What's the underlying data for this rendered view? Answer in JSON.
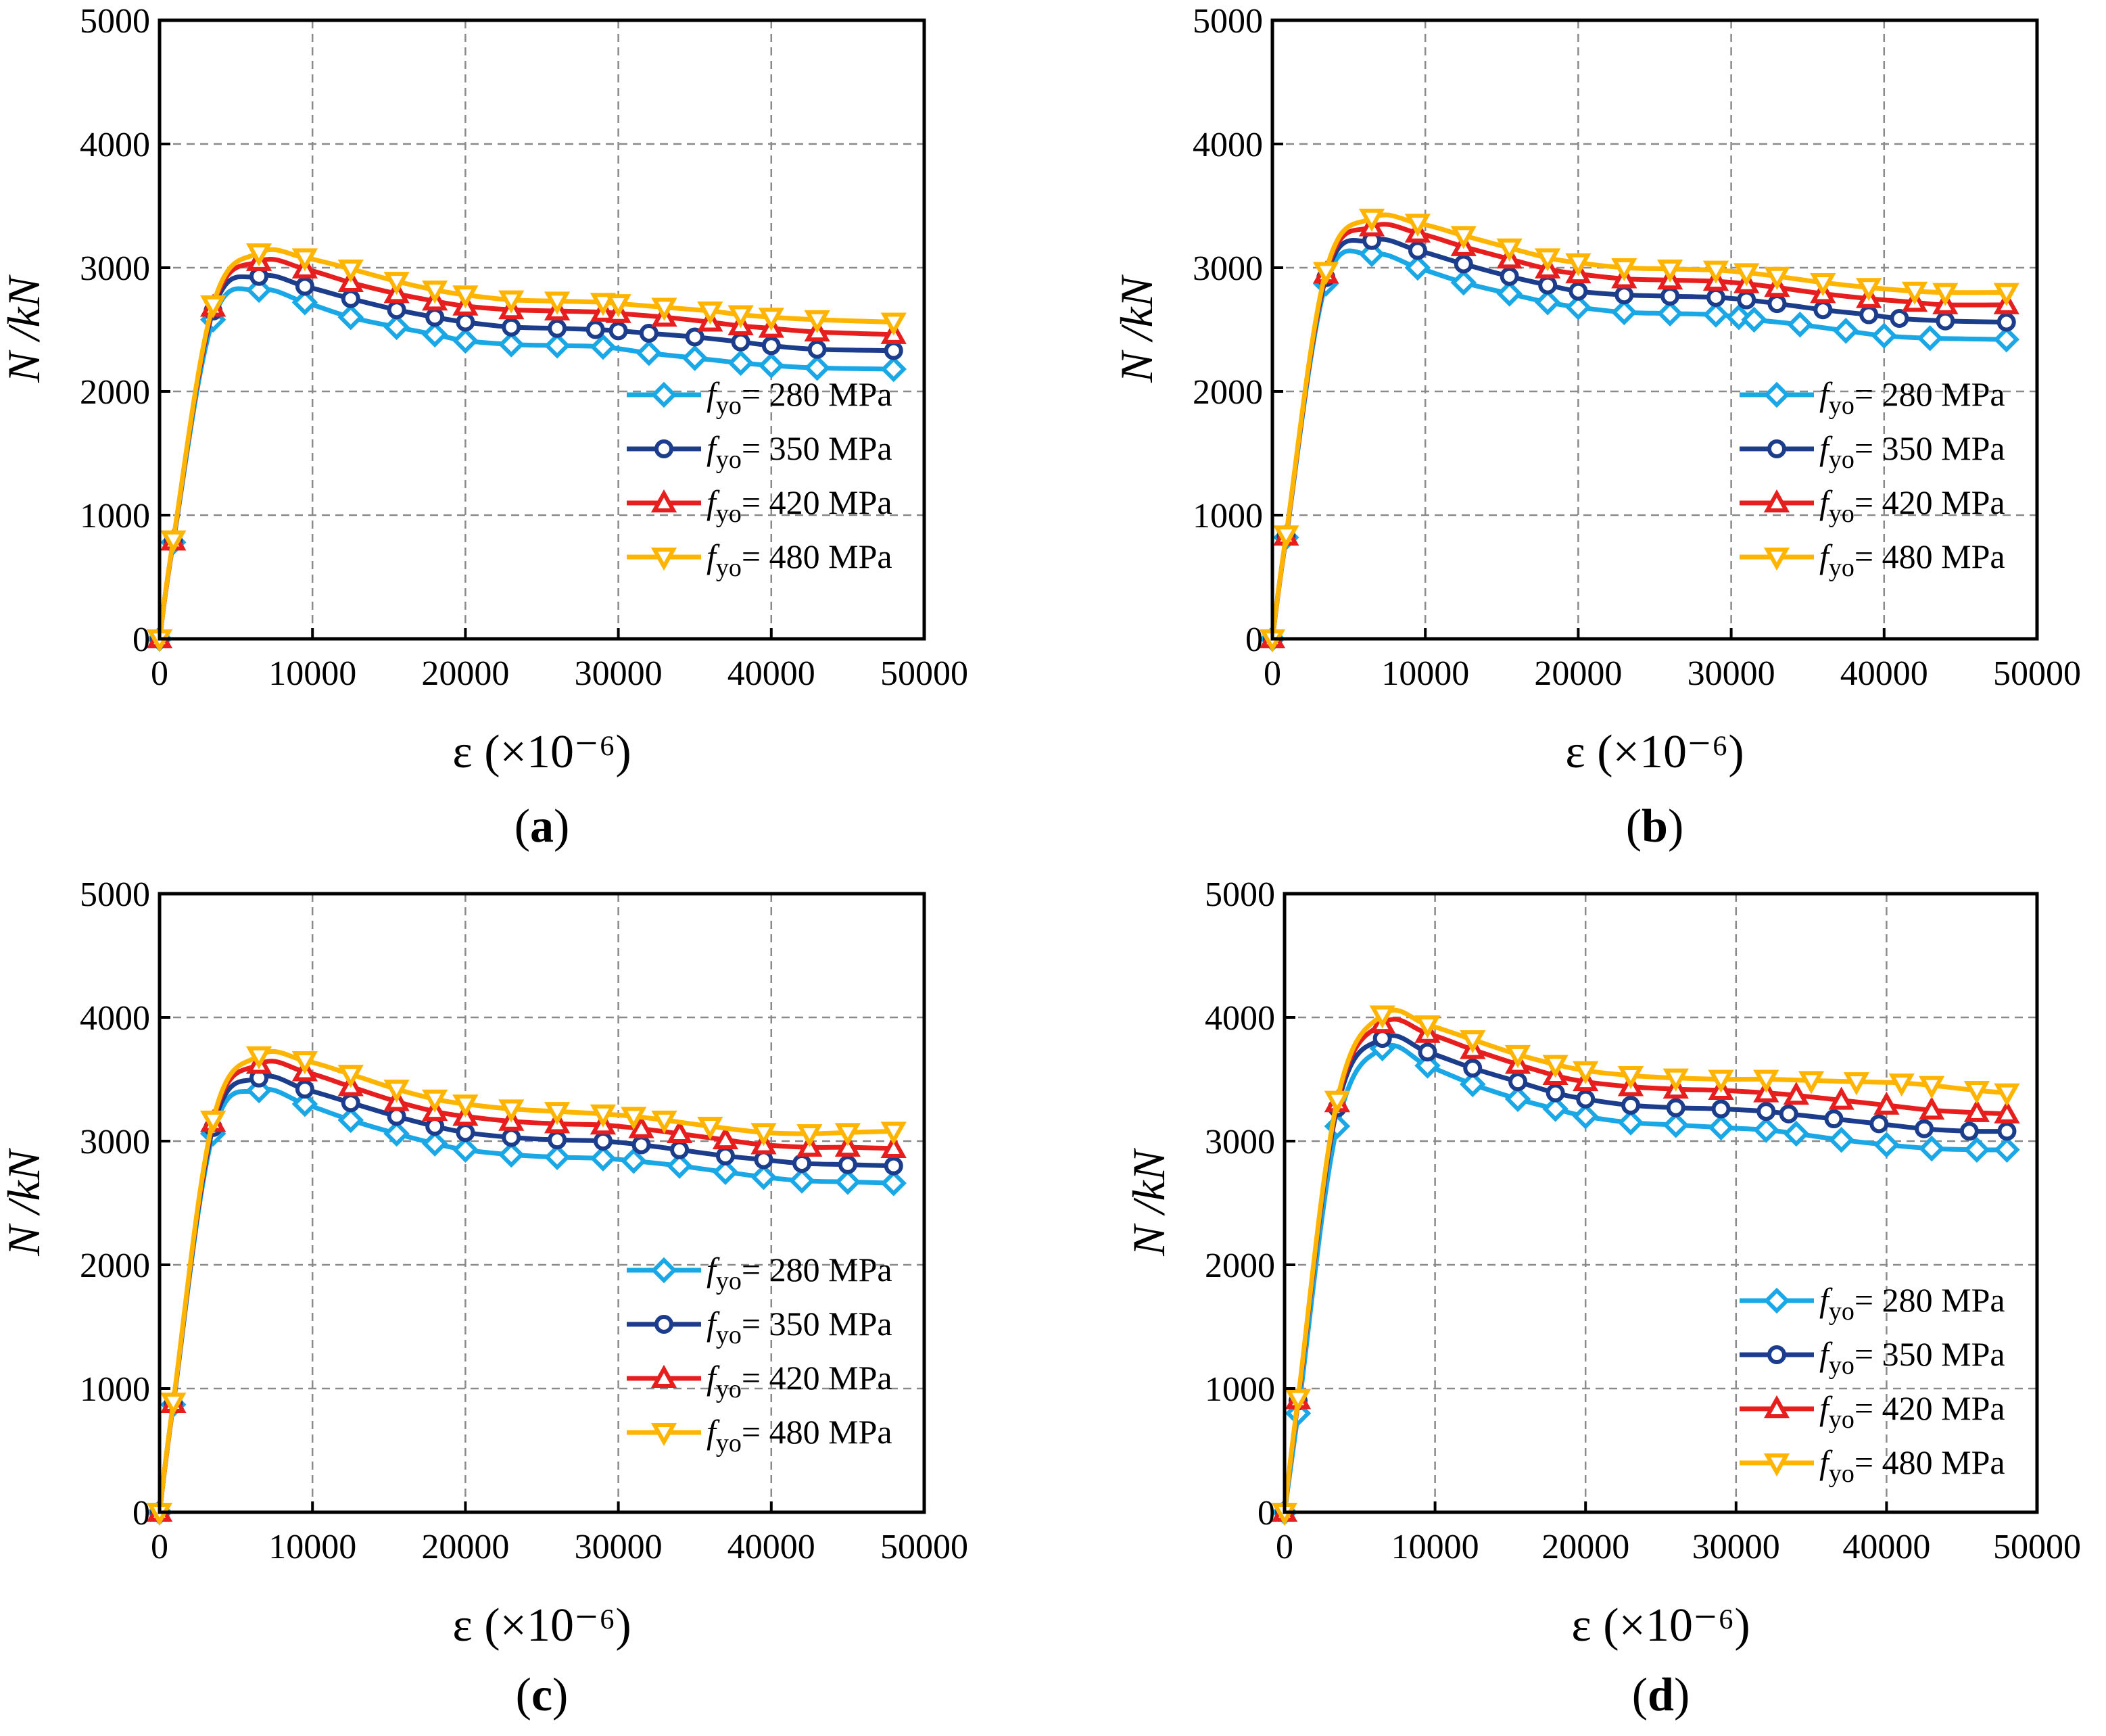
{
  "chart_data": [
    {
      "panel": "a",
      "caption_letter": "a",
      "type": "line",
      "xlabel": "ε (×10⁻⁶)",
      "ylabel": "N /kN",
      "xlim": [
        0,
        50000
      ],
      "ylim": [
        0,
        5000
      ],
      "xticks": [
        "0",
        "10000",
        "20000",
        "30000",
        "40000",
        "50000"
      ],
      "yticks": [
        "0",
        "1000",
        "2000",
        "3000",
        "4000",
        "5000"
      ],
      "grid": true,
      "legend_position": "lower-right",
      "series": [
        {
          "name": "fyo= 280 MPa",
          "sub": "yo",
          "label_rest": "= 280 MPa",
          "color": "#1aa7e6",
          "marker": "diamond",
          "x": [
            0,
            900,
            3500,
            6500,
            9500,
            12500,
            15500,
            18000,
            20000,
            23000,
            26000,
            29000,
            32000,
            35000,
            38000,
            40000,
            43000,
            48000
          ],
          "y": [
            0,
            780,
            2580,
            2820,
            2720,
            2600,
            2520,
            2460,
            2410,
            2380,
            2370,
            2360,
            2310,
            2270,
            2230,
            2210,
            2190,
            2180
          ]
        },
        {
          "name": "fyo= 350 MPa",
          "sub": "yo",
          "label_rest": "= 350 MPa",
          "color": "#1c3d8c",
          "marker": "circle",
          "x": [
            0,
            900,
            3500,
            6500,
            9500,
            12500,
            15500,
            18000,
            20000,
            23000,
            26000,
            28500,
            30000,
            32000,
            35000,
            38000,
            40000,
            43000,
            48000
          ],
          "y": [
            0,
            790,
            2650,
            2930,
            2850,
            2750,
            2660,
            2600,
            2560,
            2520,
            2510,
            2500,
            2490,
            2470,
            2440,
            2400,
            2370,
            2340,
            2330
          ]
        },
        {
          "name": "fyo= 420 MPa",
          "sub": "yo",
          "label_rest": "= 420 MPa",
          "color": "#e61e1e",
          "marker": "triangle-up",
          "x": [
            0,
            900,
            3500,
            6500,
            9500,
            12500,
            15500,
            18000,
            20000,
            23000,
            26000,
            29000,
            30000,
            33000,
            36000,
            38000,
            40000,
            43000,
            48000
          ],
          "y": [
            0,
            790,
            2680,
            3050,
            2990,
            2880,
            2790,
            2730,
            2690,
            2660,
            2650,
            2640,
            2630,
            2600,
            2560,
            2530,
            2510,
            2480,
            2460
          ]
        },
        {
          "name": "fyo= 480 MPa",
          "sub": "yo",
          "label_rest": "= 480 MPa",
          "color": "#ffb400",
          "marker": "triangle-down",
          "x": [
            0,
            900,
            3500,
            6500,
            9500,
            12500,
            15500,
            18000,
            20000,
            23000,
            26000,
            29000,
            30000,
            33000,
            36000,
            38000,
            40000,
            43000,
            48000
          ],
          "y": [
            0,
            800,
            2700,
            3120,
            3080,
            2990,
            2890,
            2820,
            2780,
            2740,
            2730,
            2720,
            2710,
            2680,
            2650,
            2620,
            2600,
            2580,
            2560
          ]
        }
      ]
    },
    {
      "panel": "b",
      "caption_letter": "b",
      "type": "line",
      "xlabel": "ε (×10⁻⁶)",
      "ylabel": "N /kN",
      "xlim": [
        0,
        50000
      ],
      "ylim": [
        0,
        5000
      ],
      "xticks": [
        "0",
        "10000",
        "20000",
        "30000",
        "40000",
        "50000"
      ],
      "yticks": [
        "0",
        "1000",
        "2000",
        "3000",
        "4000",
        "5000"
      ],
      "grid": true,
      "legend_position": "lower-right",
      "series": [
        {
          "name": "fyo= 280 MPa",
          "sub": "yo",
          "label_rest": "= 280 MPa",
          "color": "#1aa7e6",
          "marker": "diamond",
          "x": [
            0,
            900,
            3500,
            6500,
            9500,
            12500,
            15500,
            18000,
            20000,
            23000,
            26000,
            29000,
            30500,
            31500,
            34500,
            37500,
            40000,
            43000,
            48000
          ],
          "y": [
            0,
            820,
            2870,
            3110,
            3000,
            2880,
            2790,
            2720,
            2680,
            2640,
            2630,
            2620,
            2600,
            2580,
            2540,
            2490,
            2450,
            2430,
            2420
          ]
        },
        {
          "name": "fyo= 350 MPa",
          "sub": "yo",
          "label_rest": "= 350 MPa",
          "color": "#1c3d8c",
          "marker": "circle",
          "x": [
            0,
            900,
            3500,
            6500,
            9500,
            12500,
            15500,
            18000,
            20000,
            23000,
            26000,
            29000,
            31000,
            33000,
            36000,
            39000,
            41000,
            44000,
            48000
          ],
          "y": [
            0,
            830,
            2920,
            3220,
            3140,
            3030,
            2930,
            2860,
            2810,
            2780,
            2770,
            2760,
            2740,
            2710,
            2660,
            2620,
            2590,
            2570,
            2560
          ]
        },
        {
          "name": "fyo= 420 MPa",
          "sub": "yo",
          "label_rest": "= 420 MPa",
          "color": "#e61e1e",
          "marker": "triangle-up",
          "x": [
            0,
            900,
            3500,
            6500,
            9500,
            12500,
            15500,
            18000,
            20000,
            23000,
            26000,
            29000,
            31000,
            33000,
            36000,
            39000,
            42000,
            44000,
            48000
          ],
          "y": [
            0,
            830,
            2950,
            3330,
            3280,
            3170,
            3070,
            2990,
            2950,
            2910,
            2900,
            2890,
            2870,
            2840,
            2790,
            2750,
            2720,
            2700,
            2700
          ]
        },
        {
          "name": "fyo= 480 MPa",
          "sub": "yo",
          "label_rest": "= 480 MPa",
          "color": "#ffb400",
          "marker": "triangle-down",
          "x": [
            0,
            900,
            3500,
            6500,
            9500,
            12500,
            15500,
            18000,
            20000,
            23000,
            26000,
            29000,
            31000,
            33000,
            36000,
            39000,
            42000,
            44000,
            48000
          ],
          "y": [
            0,
            840,
            2970,
            3400,
            3360,
            3260,
            3160,
            3080,
            3040,
            3000,
            2990,
            2980,
            2960,
            2930,
            2880,
            2840,
            2810,
            2800,
            2800
          ]
        }
      ]
    },
    {
      "panel": "c",
      "caption_letter": "c",
      "type": "line",
      "xlabel": "ε (×10⁻⁶)",
      "ylabel": "N /kN",
      "xlim": [
        0,
        50000
      ],
      "ylim": [
        0,
        5000
      ],
      "xticks": [
        "0",
        "10000",
        "20000",
        "30000",
        "40000",
        "50000"
      ],
      "yticks": [
        "0",
        "1000",
        "2000",
        "3000",
        "4000",
        "5000"
      ],
      "grid": true,
      "legend_position": "lower-right",
      "series": [
        {
          "name": "fyo= 280 MPa",
          "sub": "yo",
          "label_rest": "= 280 MPa",
          "color": "#1aa7e6",
          "marker": "diamond",
          "x": [
            0,
            900,
            3500,
            6500,
            9500,
            12500,
            15500,
            18000,
            20000,
            23000,
            26000,
            29000,
            31000,
            34000,
            37000,
            39500,
            42000,
            45000,
            48000
          ],
          "y": [
            0,
            870,
            3060,
            3410,
            3300,
            3170,
            3060,
            2980,
            2930,
            2890,
            2870,
            2860,
            2840,
            2800,
            2750,
            2710,
            2680,
            2670,
            2660
          ]
        },
        {
          "name": "fyo= 350 MPa",
          "sub": "yo",
          "label_rest": "= 350 MPa",
          "color": "#1c3d8c",
          "marker": "circle",
          "x": [
            0,
            900,
            3500,
            6500,
            9500,
            12500,
            15500,
            18000,
            20000,
            23000,
            26000,
            29000,
            31500,
            34000,
            37000,
            39500,
            42000,
            45000,
            48000
          ],
          "y": [
            0,
            880,
            3110,
            3510,
            3420,
            3310,
            3200,
            3120,
            3070,
            3030,
            3010,
            3000,
            2970,
            2930,
            2880,
            2850,
            2820,
            2810,
            2800
          ]
        },
        {
          "name": "fyo= 420 MPa",
          "sub": "yo",
          "label_rest": "= 420 MPa",
          "color": "#e61e1e",
          "marker": "triangle-up",
          "x": [
            0,
            900,
            3500,
            6500,
            9500,
            12500,
            15500,
            18000,
            20000,
            23000,
            26000,
            29000,
            31500,
            34000,
            37000,
            39500,
            42500,
            45000,
            48000
          ],
          "y": [
            0,
            880,
            3150,
            3620,
            3560,
            3440,
            3320,
            3240,
            3200,
            3160,
            3140,
            3130,
            3100,
            3060,
            3010,
            2970,
            2950,
            2950,
            2940
          ]
        },
        {
          "name": "fyo= 480 MPa",
          "sub": "yo",
          "label_rest": "= 480 MPa",
          "color": "#ffb400",
          "marker": "triangle-down",
          "x": [
            0,
            900,
            3500,
            6500,
            9500,
            12500,
            15500,
            18000,
            20000,
            23000,
            26000,
            29000,
            31000,
            33000,
            36000,
            39500,
            42500,
            45000,
            48000
          ],
          "y": [
            0,
            890,
            3170,
            3690,
            3650,
            3540,
            3420,
            3340,
            3300,
            3260,
            3240,
            3220,
            3200,
            3170,
            3120,
            3070,
            3060,
            3070,
            3080
          ]
        }
      ]
    },
    {
      "panel": "d",
      "caption_letter": "d",
      "type": "line",
      "xlabel": "ε (×10⁻⁶)",
      "ylabel": "N /kN",
      "xlim": [
        0,
        50000
      ],
      "ylim": [
        0,
        5000
      ],
      "xticks": [
        "0",
        "10000",
        "20000",
        "30000",
        "40000",
        "50000"
      ],
      "yticks": [
        "0",
        "1000",
        "2000",
        "3000",
        "4000",
        "5000"
      ],
      "grid": true,
      "legend_position": "lower-right",
      "series": [
        {
          "name": "fyo= 280 MPa",
          "sub": "yo",
          "label_rest": "= 280 MPa",
          "color": "#1aa7e6",
          "marker": "diamond",
          "x": [
            0,
            900,
            3500,
            6500,
            9500,
            12500,
            15500,
            18000,
            20000,
            23000,
            26000,
            29000,
            32000,
            34000,
            37000,
            40000,
            43000,
            46000,
            48000
          ],
          "y": [
            0,
            800,
            3120,
            3750,
            3610,
            3460,
            3340,
            3260,
            3200,
            3150,
            3130,
            3110,
            3090,
            3060,
            3010,
            2970,
            2940,
            2930,
            2930
          ]
        },
        {
          "name": "fyo= 350 MPa",
          "sub": "yo",
          "label_rest": "= 350 MPa",
          "color": "#1c3d8c",
          "marker": "circle",
          "x": [
            0,
            900,
            3500,
            6500,
            9500,
            12500,
            15500,
            18000,
            20000,
            23000,
            26000,
            29000,
            32000,
            33500,
            36500,
            39500,
            42500,
            45500,
            48000
          ],
          "y": [
            0,
            900,
            3270,
            3830,
            3720,
            3590,
            3480,
            3390,
            3340,
            3290,
            3270,
            3260,
            3240,
            3220,
            3180,
            3140,
            3100,
            3080,
            3080
          ]
        },
        {
          "name": "fyo= 420 MPa",
          "sub": "yo",
          "label_rest": "= 420 MPa",
          "color": "#e61e1e",
          "marker": "triangle-up",
          "x": [
            0,
            900,
            3500,
            6500,
            9500,
            12500,
            15500,
            18000,
            20000,
            23000,
            26000,
            29000,
            32000,
            34000,
            37000,
            40000,
            43000,
            46000,
            48000
          ],
          "y": [
            0,
            910,
            3310,
            3950,
            3870,
            3740,
            3620,
            3530,
            3480,
            3440,
            3420,
            3410,
            3390,
            3370,
            3330,
            3290,
            3250,
            3230,
            3220
          ]
        },
        {
          "name": "fyo= 480 MPa",
          "sub": "yo",
          "label_rest": "= 480 MPa",
          "color": "#ffb400",
          "marker": "triangle-down",
          "x": [
            0,
            900,
            3500,
            6500,
            9500,
            12500,
            15500,
            18000,
            20000,
            23000,
            26000,
            29000,
            32000,
            35000,
            38000,
            41000,
            43000,
            46000,
            48000
          ],
          "y": [
            0,
            920,
            3330,
            4020,
            3940,
            3820,
            3700,
            3620,
            3570,
            3530,
            3510,
            3500,
            3500,
            3490,
            3480,
            3470,
            3450,
            3410,
            3390
          ]
        }
      ]
    }
  ]
}
